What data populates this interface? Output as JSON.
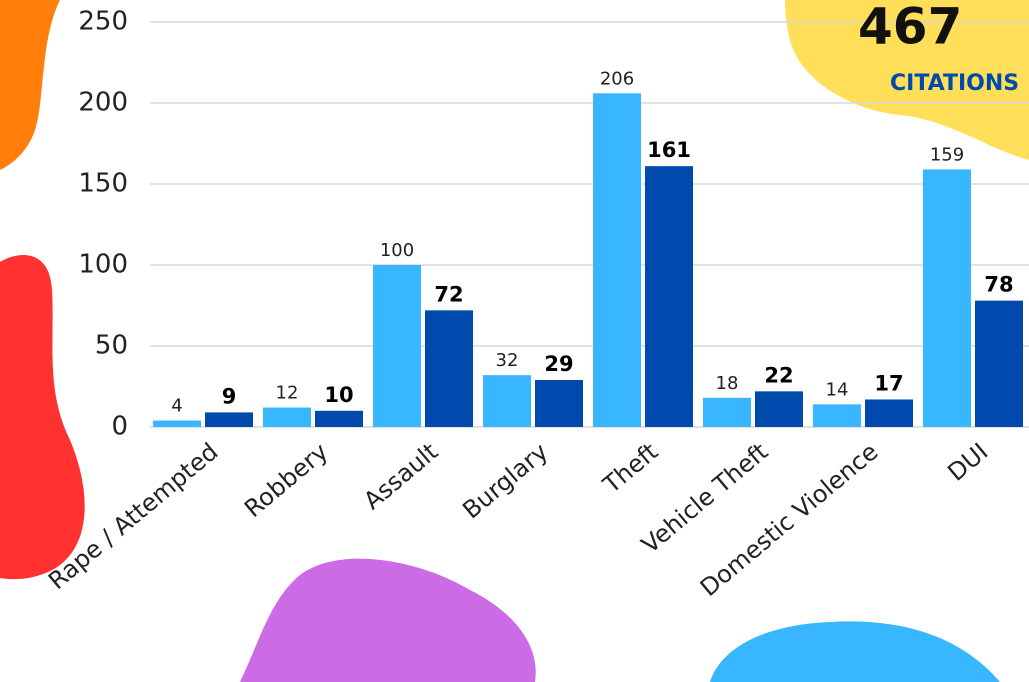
{
  "chart_data": {
    "type": "bar",
    "categories": [
      "Rape / Attempted",
      "Robbery",
      "Assault",
      "Burglary",
      "Theft",
      "Vehicle Theft",
      "Domestic Violence",
      "DUI"
    ],
    "series": [
      {
        "color": "#38b6ff",
        "values": [
          4,
          12,
          100,
          32,
          206,
          18,
          14,
          159
        ]
      },
      {
        "color": "#004aad",
        "values": [
          9,
          10,
          72,
          29,
          161,
          22,
          17,
          78
        ]
      }
    ],
    "ylim": [
      0,
      250
    ],
    "yticks": [
      0,
      50,
      100,
      150,
      200,
      250
    ],
    "grid": true
  },
  "badge": {
    "number": "467",
    "label": "CITATIONS"
  }
}
